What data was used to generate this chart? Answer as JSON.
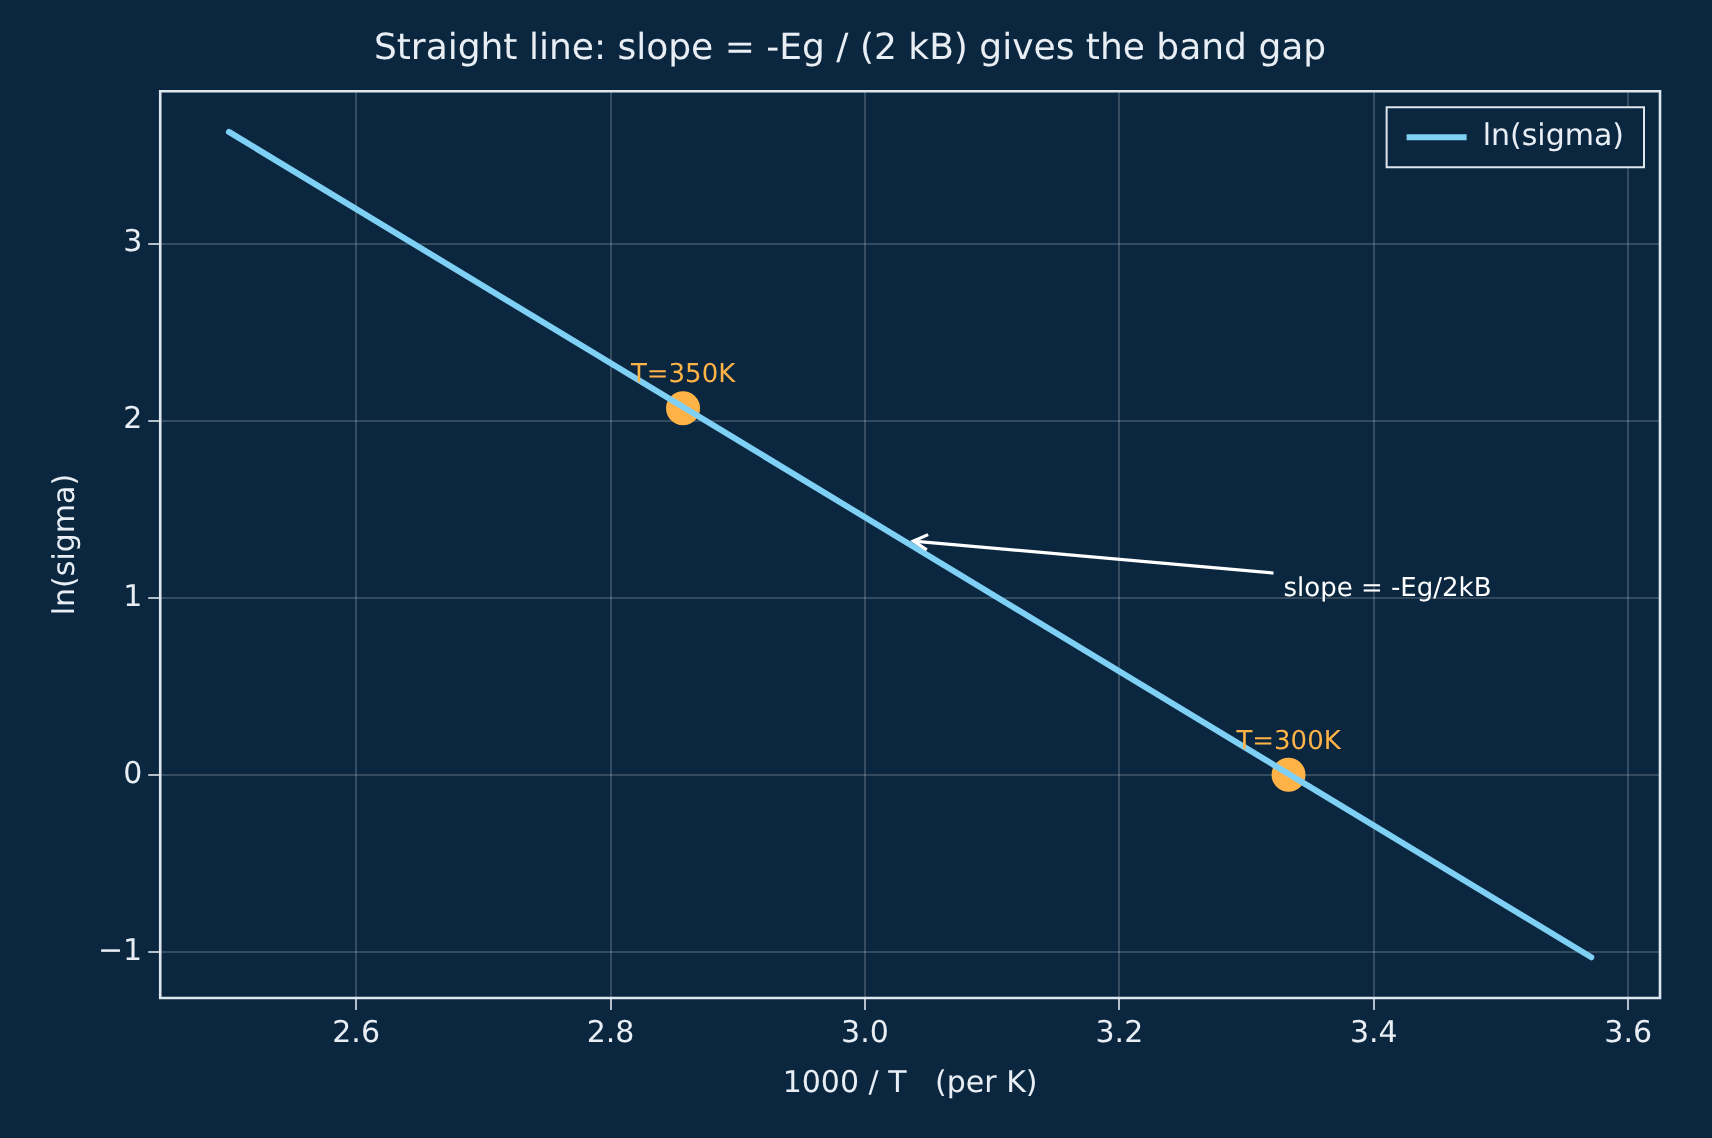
{
  "chart_data": {
    "type": "line",
    "title": "Straight line: slope = -Eg / (2 kB) gives the band gap",
    "xlabel": "1000 / T   (per K)",
    "ylabel": "ln(sigma)",
    "series": [
      {
        "name": "ln(sigma)",
        "color": "#7fd0f5",
        "marker": "none",
        "x": [
          2.5,
          3.571
        ],
        "values": [
          3.63,
          -1.03
        ]
      },
      {
        "type": "scatter",
        "color": "#ffb347",
        "marker": "circle",
        "x": [
          2.857,
          3.333
        ],
        "values": [
          2.07,
          0.0
        ]
      }
    ],
    "annotations": [
      {
        "text": "slope = -Eg/2kB",
        "x": 3.035,
        "y": 1.32
      },
      {
        "text": "T=350K",
        "x": 2.857,
        "y": 2.07
      },
      {
        "text": "T=300K",
        "x": 3.333,
        "y": 0.0
      }
    ],
    "xlim": [
      2.446,
      3.625
    ],
    "xticks": [
      {
        "value": 2.6,
        "label": "2.6"
      },
      {
        "value": 2.8,
        "label": "2.8"
      },
      {
        "value": 3.0,
        "label": "3.0"
      },
      {
        "value": 3.2,
        "label": "3.2"
      },
      {
        "value": 3.4,
        "label": "3.4"
      },
      {
        "value": 3.6,
        "label": "3.6"
      }
    ],
    "ylim": [
      -1.26,
      3.86
    ],
    "yticks": [
      {
        "value": -1,
        "label": "−1"
      },
      0,
      1,
      2,
      3
    ],
    "grid": true,
    "legend": "top right",
    "line_style": "solid"
  }
}
